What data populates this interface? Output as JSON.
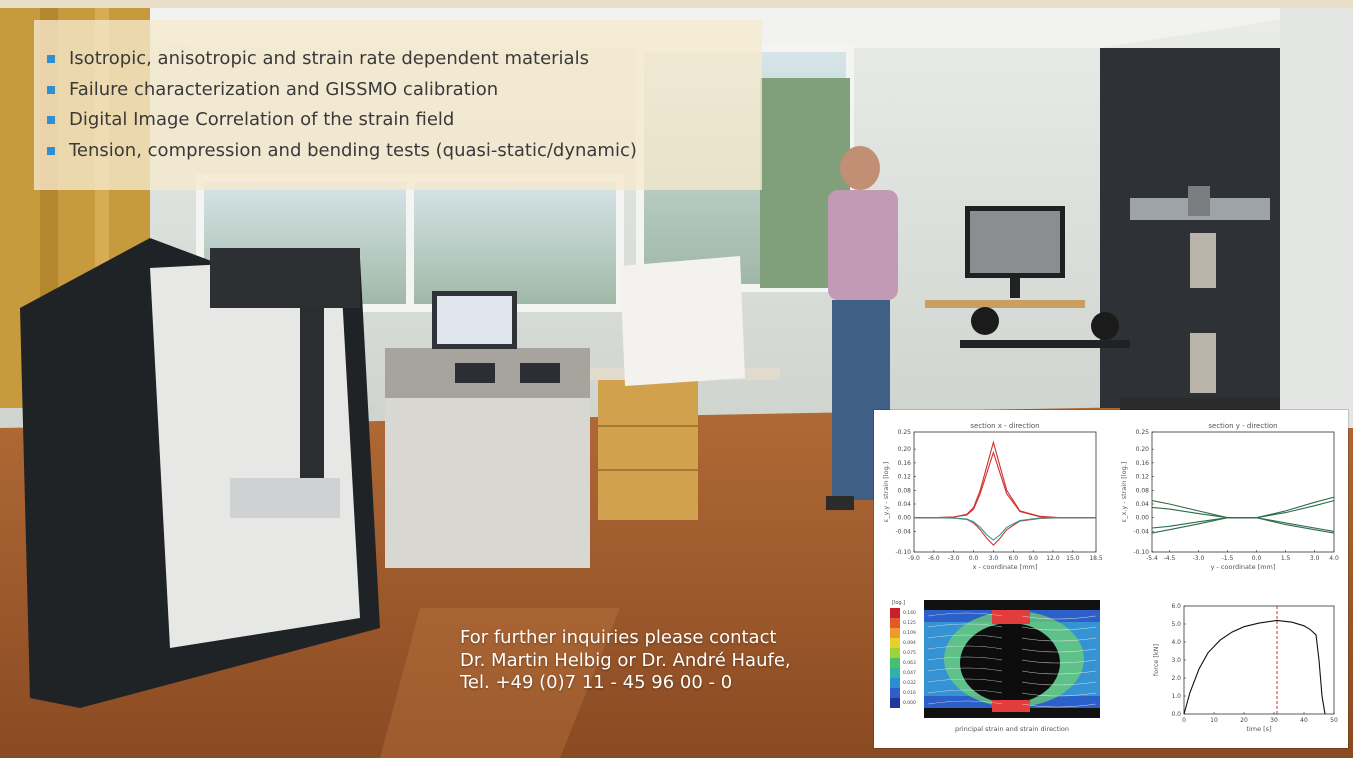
{
  "features": [
    "Isotropic, anisotropic and strain rate dependent materials",
    "Failure characterization and GISSMO calibration",
    "Digital Image Correlation of the strain field",
    "Tension, compression and bending tests (quasi-static/dynamic)"
  ],
  "contact": {
    "line1": "For further inquiries please contact",
    "line2": "Dr. Martin Helbig or Dr. André Haufe,",
    "line3": "Tel. +49 (0)7 11 - 45 96 00 - 0"
  },
  "colors": {
    "bullet": "#2f8fd0",
    "panel": "#f6e9cd",
    "floor": "#a85a2a",
    "trace_red": "#d03030",
    "trace_teal": "#2a9d8f",
    "trace_green": "#2e6b4a"
  },
  "chart_data": [
    {
      "type": "line",
      "title": "section x - direction",
      "xlabel": "x - coordinate [mm]",
      "ylabel": "ε_y,y - strain [log.]",
      "xlim": [
        -9.0,
        18.5
      ],
      "ylim": [
        -0.1,
        0.25
      ],
      "xticks": [
        -9.0,
        -6.0,
        -3.0,
        0.0,
        3.0,
        6.0,
        9.0,
        12.0,
        15.0,
        18.5
      ],
      "yticks": [
        -0.1,
        -0.04,
        0.0,
        0.04,
        0.08,
        0.12,
        0.16,
        0.2,
        0.25
      ],
      "grid": false,
      "series": [
        {
          "x": [
            -9,
            -6,
            -3,
            -1,
            0,
            1,
            2,
            3,
            4,
            5,
            7,
            10,
            13,
            16,
            18.5
          ],
          "y": [
            0,
            0,
            0.002,
            0.01,
            0.03,
            0.08,
            0.15,
            0.22,
            0.15,
            0.08,
            0.02,
            0.004,
            0,
            0,
            0
          ]
        },
        {
          "x": [
            -9,
            -6,
            -3,
            -1,
            0,
            1,
            2,
            3,
            4,
            5,
            7,
            10,
            13,
            16,
            18.5
          ],
          "y": [
            0,
            0,
            0.002,
            0.008,
            0.025,
            0.07,
            0.13,
            0.19,
            0.13,
            0.07,
            0.018,
            0.003,
            0,
            0,
            0
          ]
        },
        {
          "x": [
            -9,
            -6,
            -3,
            -1,
            0,
            1,
            2,
            3,
            4,
            5,
            7,
            10,
            13,
            16,
            18.5
          ],
          "y": [
            0,
            0,
            -0.001,
            -0.005,
            -0.015,
            -0.035,
            -0.06,
            -0.08,
            -0.06,
            -0.035,
            -0.01,
            -0.002,
            0,
            0,
            0
          ]
        },
        {
          "x": [
            -9,
            -6,
            -3,
            -1,
            0,
            1,
            2,
            3,
            4,
            5,
            7,
            10,
            13,
            16,
            18.5
          ],
          "y": [
            0,
            0,
            -0.001,
            -0.004,
            -0.012,
            -0.028,
            -0.05,
            -0.065,
            -0.05,
            -0.028,
            -0.008,
            -0.001,
            0,
            0,
            0
          ]
        }
      ]
    },
    {
      "type": "line",
      "title": "section y - direction",
      "xlabel": "y - coordinate [mm]",
      "ylabel": "ε_x,y - strain [log.]",
      "xlim": [
        -5.4,
        4.0
      ],
      "ylim": [
        -0.1,
        0.25
      ],
      "xticks": [
        -5.4,
        -4.5,
        -3.0,
        -1.5,
        0.0,
        1.5,
        3.0,
        4.0
      ],
      "yticks": [
        -0.1,
        -0.04,
        0.0,
        0.04,
        0.08,
        0.12,
        0.16,
        0.2,
        0.25
      ],
      "grid": false,
      "series": [
        {
          "x": [
            -5.4,
            -4.5,
            -3,
            -1.5,
            0,
            1.5,
            3,
            4
          ],
          "y": [
            0.05,
            0.04,
            0.02,
            0.0,
            0.0,
            0.02,
            0.045,
            0.06
          ]
        },
        {
          "x": [
            -5.4,
            -4.5,
            -3,
            -1.5,
            0,
            1.5,
            3,
            4
          ],
          "y": [
            0.03,
            0.025,
            0.012,
            0.0,
            0.0,
            0.015,
            0.035,
            0.05
          ]
        },
        {
          "x": [
            -5.4,
            -4.5,
            -3,
            -1.5,
            0,
            1.5,
            3,
            4
          ],
          "y": [
            -0.03,
            -0.025,
            -0.012,
            0.0,
            0.0,
            -0.015,
            -0.03,
            -0.04
          ]
        },
        {
          "x": [
            -5.4,
            -4.5,
            -3,
            -1.5,
            0,
            1.5,
            3,
            4
          ],
          "y": [
            -0.045,
            -0.035,
            -0.018,
            0.0,
            0.0,
            -0.02,
            -0.035,
            -0.045
          ]
        }
      ]
    },
    {
      "type": "heatmap",
      "title": "",
      "xlabel": "principal strain and strain direction",
      "colorbar_label": "[log.]",
      "colorbar_ticks": [
        0.14,
        0.125,
        0.109,
        0.094,
        0.075,
        0.063,
        0.047,
        0.032,
        0.016,
        0.0
      ]
    },
    {
      "type": "line",
      "title": "",
      "xlabel": "time [s]",
      "ylabel": "force [kN]",
      "xlim": [
        0,
        50
      ],
      "ylim": [
        0,
        6.0
      ],
      "xticks": [
        0,
        10,
        20,
        30,
        40,
        50
      ],
      "yticks": [
        0.0,
        1.0,
        2.0,
        3.0,
        4.0,
        5.0,
        6.0
      ],
      "marker_x": 31,
      "grid": false,
      "series": [
        {
          "x": [
            0,
            2,
            5,
            8,
            12,
            16,
            20,
            25,
            31,
            36,
            40,
            42,
            44,
            45,
            46,
            47
          ],
          "y": [
            0,
            1.2,
            2.5,
            3.4,
            4.1,
            4.55,
            4.85,
            5.05,
            5.2,
            5.1,
            4.9,
            4.7,
            4.4,
            3.0,
            1.0,
            0.0
          ]
        }
      ]
    }
  ]
}
